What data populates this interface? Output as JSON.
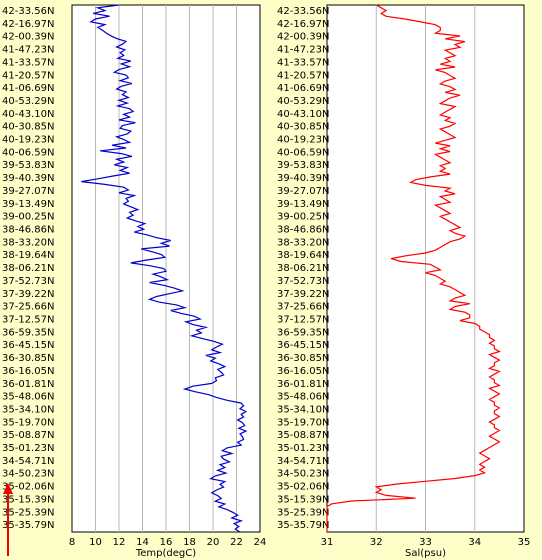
{
  "latitudes": [
    "42-33.56N",
    "42-16.97N",
    "42-00.39N",
    "41-47.23N",
    "41-33.57N",
    "41-20.57N",
    "41-06.69N",
    "40-53.29N",
    "40-43.10N",
    "40-30.85N",
    "40-19.23N",
    "40-06.59N",
    "39-53.83N",
    "39-40.39N",
    "39-27.07N",
    "39-13.49N",
    "39-00.25N",
    "38-46.86N",
    "38-33.20N",
    "38-19.64N",
    "38-06.21N",
    "37-52.73N",
    "37-39.22N",
    "37-25.66N",
    "37-12.57N",
    "36-59.35N",
    "36-45.15N",
    "36-30.85N",
    "36-16.05N",
    "36-01.81N",
    "35-48.06N",
    "35-34.10N",
    "35-19.70N",
    "35-08.87N",
    "35-01.23N",
    "34-54.71N",
    "34-50.23N",
    "35-02.06N",
    "35-15.39N",
    "35-25.39N",
    "35-35.79N"
  ],
  "chart_data": [
    {
      "type": "line",
      "xlabel": "Temp(degC)",
      "xlim": [
        8,
        24
      ],
      "xticks": [
        8,
        10,
        12,
        14,
        16,
        18,
        20,
        22,
        24
      ],
      "grid": true,
      "color": "#0000cc",
      "series": [
        {
          "values": [
            12.0,
            10.2,
            10.8,
            9.8,
            11.2,
            10.0,
            9.6,
            10.8,
            10.2,
            10.6,
            10.9,
            11.3,
            11.8,
            12.6,
            12.3,
            11.8,
            12.5,
            12.1,
            12.4,
            11.9,
            13.0,
            12.2,
            12.9,
            12.0,
            11.6,
            12.6,
            12.8,
            12.1,
            13.1,
            12.2,
            11.8,
            12.6,
            12.3,
            12.8,
            12.0,
            12.7,
            11.9,
            12.9,
            13.2,
            12.4,
            12.9,
            12.0,
            13.4,
            12.3,
            12.1,
            13.0,
            12.7,
            11.8,
            12.4,
            12.9,
            11.4,
            12.6,
            10.4,
            12.2,
            13.1,
            11.8,
            12.4,
            11.6,
            12.7,
            12.1,
            12.9,
            11.5,
            10.2,
            8.8,
            10.8,
            12.4,
            12.8,
            12.0,
            13.3,
            12.6,
            12.8,
            12.4,
            13.0,
            13.6,
            12.9,
            13.2,
            12.7,
            13.4,
            14.2,
            13.6,
            14.1,
            13.3,
            14.4,
            15.2,
            16.4,
            15.6,
            16.3,
            13.9,
            14.8,
            15.6,
            15.9,
            14.3,
            13.0,
            14.6,
            15.8,
            16.0,
            14.9,
            15.6,
            16.1,
            14.6,
            15.8,
            16.7,
            17.4,
            16.3,
            15.2,
            14.6,
            15.4,
            16.9,
            17.6,
            16.4,
            17.3,
            18.4,
            18.9,
            17.7,
            18.3,
            19.4,
            18.6,
            19.0,
            18.2,
            19.1,
            20.1,
            20.8,
            20.3,
            19.9,
            20.6,
            19.4,
            20.2,
            19.8,
            20.5,
            21.0,
            20.4,
            20.7,
            20.9,
            20.2,
            20.3,
            19.9,
            18.3,
            17.6,
            18.5,
            19.6,
            20.3,
            21.2,
            22.4,
            22.6,
            22.3,
            22.8,
            22.4,
            22.6,
            22.1,
            22.5,
            22.7,
            22.2,
            22.8,
            22.3,
            22.5,
            22.6,
            22.1,
            22.4,
            21.2,
            20.8,
            21.6,
            20.7,
            20.9,
            21.4,
            20.6,
            21.0,
            20.4,
            21.1,
            20.2,
            19.8,
            21.0,
            20.6,
            20.9,
            20.3,
            19.9,
            20.4,
            20.7,
            20.2,
            21.0,
            20.5,
            21.2,
            21.7,
            22.1,
            21.6,
            22.4,
            21.8,
            22.2,
            21.9,
            22.3
          ]
        }
      ]
    },
    {
      "type": "line",
      "xlabel": "Sal(psu)",
      "xlim": [
        31,
        35
      ],
      "xticks": [
        31,
        32,
        33,
        34,
        35
      ],
      "grid": true,
      "color": "#ff0000",
      "series": [
        {
          "values": [
            32.0,
            32.1,
            32.2,
            32.1,
            32.2,
            32.6,
            32.9,
            33.2,
            33.3,
            33.3,
            33.2,
            33.7,
            33.4,
            33.8,
            33.6,
            33.7,
            33.4,
            33.5,
            33.6,
            33.4,
            33.5,
            33.3,
            33.6,
            33.2,
            33.4,
            33.5,
            33.6,
            33.4,
            33.3,
            33.5,
            33.6,
            33.4,
            33.7,
            33.5,
            33.4,
            33.3,
            33.6,
            33.5,
            33.4,
            33.3,
            33.5,
            33.4,
            33.6,
            33.5,
            33.3,
            33.4,
            33.5,
            33.6,
            33.4,
            33.2,
            33.5,
            33.3,
            33.5,
            33.2,
            33.3,
            33.4,
            33.5,
            33.3,
            33.4,
            33.3,
            33.5,
            33.1,
            32.8,
            32.7,
            33.0,
            33.5,
            33.4,
            33.6,
            33.3,
            33.4,
            33.5,
            33.2,
            33.3,
            33.4,
            33.5,
            33.3,
            33.4,
            33.5,
            33.6,
            33.7,
            33.5,
            33.6,
            33.8,
            33.7,
            33.5,
            33.4,
            33.3,
            33.2,
            33.0,
            32.6,
            32.3,
            32.5,
            33.1,
            33.2,
            33.3,
            33.0,
            33.2,
            33.3,
            33.4,
            33.3,
            33.5,
            33.6,
            33.7,
            33.8,
            33.6,
            33.5,
            33.9,
            33.6,
            33.5,
            33.8,
            33.9,
            33.9,
            33.7,
            34.0,
            34.1,
            34.1,
            34.2,
            34.3,
            34.3,
            34.4,
            34.3,
            34.4,
            34.4,
            34.5,
            34.3,
            34.4,
            34.5,
            34.4,
            34.4,
            34.3,
            34.5,
            34.4,
            34.3,
            34.4,
            34.4,
            34.5,
            34.3,
            34.4,
            34.5,
            34.4,
            34.3,
            34.4,
            34.4,
            34.5,
            34.4,
            34.4,
            34.5,
            34.4,
            34.3,
            34.4,
            34.4,
            34.5,
            34.4,
            34.3,
            34.4,
            34.5,
            34.4,
            34.3,
            34.2,
            34.1,
            34.2,
            34.3,
            34.2,
            34.1,
            34.2,
            34.1,
            34.2,
            34.0,
            33.6,
            33.0,
            32.4,
            32.0,
            32.1,
            32.0,
            32.2,
            32.8,
            31.5,
            31.1,
            31.0,
            31.0,
            31.0,
            31.0,
            31.0,
            31.0,
            31.0,
            31.0,
            31.0,
            31.0
          ]
        }
      ]
    }
  ]
}
